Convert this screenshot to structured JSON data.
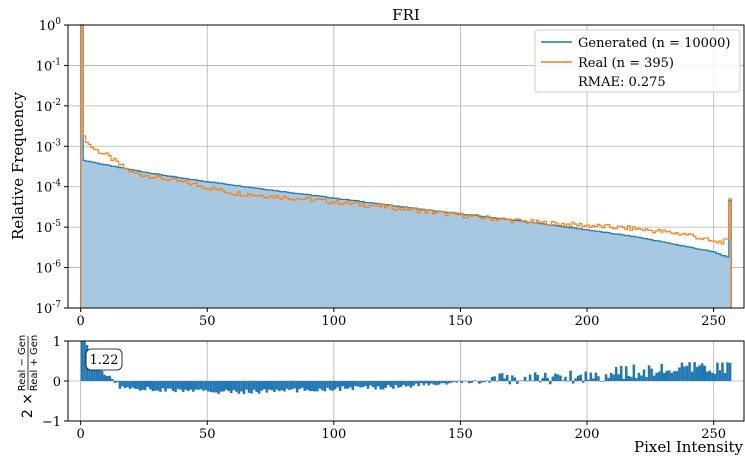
{
  "chart_data": [
    {
      "type": "line",
      "title": "FRI",
      "ylabel": "Relative Frequency",
      "xlabel": "",
      "yscale": "log",
      "xlim": [
        -5,
        262
      ],
      "ylim": [
        1e-07,
        1
      ],
      "grid": true,
      "legend_position": "top-right",
      "x_ticks": [
        "0",
        "50",
        "100",
        "150",
        "200",
        "250"
      ],
      "y_ticks": [
        "10^0",
        "10^-1",
        "10^-2",
        "10^-3",
        "10^-4",
        "10^-5",
        "10^-6",
        "10^-7"
      ],
      "annotation": "RMAE: 0.275",
      "series": [
        {
          "name": "Generated (n = 10000)",
          "style": "filled-step",
          "color": "#1f77b4",
          "fill": "#a6c8e0",
          "points": [
            [
              0,
              1.0
            ],
            [
              1,
              0.00045
            ],
            [
              10,
              0.00034
            ],
            [
              20,
              0.00026
            ],
            [
              40,
              0.00016
            ],
            [
              60,
              0.00011
            ],
            [
              80,
              7.5e-05
            ],
            [
              100,
              5.2e-05
            ],
            [
              120,
              3.6e-05
            ],
            [
              140,
              2.5e-05
            ],
            [
              160,
              1.8e-05
            ],
            [
              180,
              1.25e-05
            ],
            [
              200,
              8.5e-06
            ],
            [
              220,
              5.6e-06
            ],
            [
              240,
              3.2e-06
            ],
            [
              250,
              2.4e-06
            ],
            [
              255,
              1.8e-06
            ],
            [
              256,
              4.5e-05
            ]
          ]
        },
        {
          "name": "Real (n = 395)",
          "style": "step",
          "color": "#ff7f0e",
          "points": [
            [
              0,
              1.0
            ],
            [
              1,
              0.0018
            ],
            [
              3,
              0.0011
            ],
            [
              5,
              0.00085
            ],
            [
              10,
              0.0006
            ],
            [
              15,
              0.00035
            ],
            [
              20,
              0.00022
            ],
            [
              40,
              0.00013
            ],
            [
              60,
              7e-05
            ],
            [
              80,
              5.5e-05
            ],
            [
              100,
              4.2e-05
            ],
            [
              120,
              3.2e-05
            ],
            [
              140,
              2.3e-05
            ],
            [
              160,
              1.7e-05
            ],
            [
              180,
              1.3e-05
            ],
            [
              200,
              1.1e-05
            ],
            [
              220,
              9e-06
            ],
            [
              240,
              6.5e-06
            ],
            [
              250,
              4.2e-06
            ],
            [
              255,
              4.5e-06
            ],
            [
              256,
              5e-05
            ]
          ]
        }
      ]
    },
    {
      "type": "bar",
      "xlabel": "Pixel Intensity",
      "ylabel_prefix": "2 ×",
      "ylabel_numerator": "Real − Gen",
      "ylabel_denominator": "Real + Gen",
      "xlim": [
        -5,
        262
      ],
      "ylim": [
        -1,
        1
      ],
      "grid": true,
      "x_ticks": [
        "0",
        "50",
        "100",
        "150",
        "200",
        "250"
      ],
      "y_ticks": [
        "1",
        "0",
        "−1"
      ],
      "callout": "1.22",
      "color": "#1f77b4",
      "profile": [
        [
          0,
          1.22
        ],
        [
          2,
          0.9
        ],
        [
          4,
          0.6
        ],
        [
          7,
          0.3
        ],
        [
          12,
          0.05
        ],
        [
          15,
          -0.15
        ],
        [
          30,
          -0.22
        ],
        [
          60,
          -0.28
        ],
        [
          90,
          -0.22
        ],
        [
          120,
          -0.15
        ],
        [
          140,
          -0.08
        ],
        [
          160,
          0.0
        ],
        [
          180,
          0.08
        ],
        [
          200,
          0.12
        ],
        [
          220,
          0.25
        ],
        [
          240,
          0.3
        ],
        [
          256,
          0.35
        ]
      ]
    }
  ]
}
